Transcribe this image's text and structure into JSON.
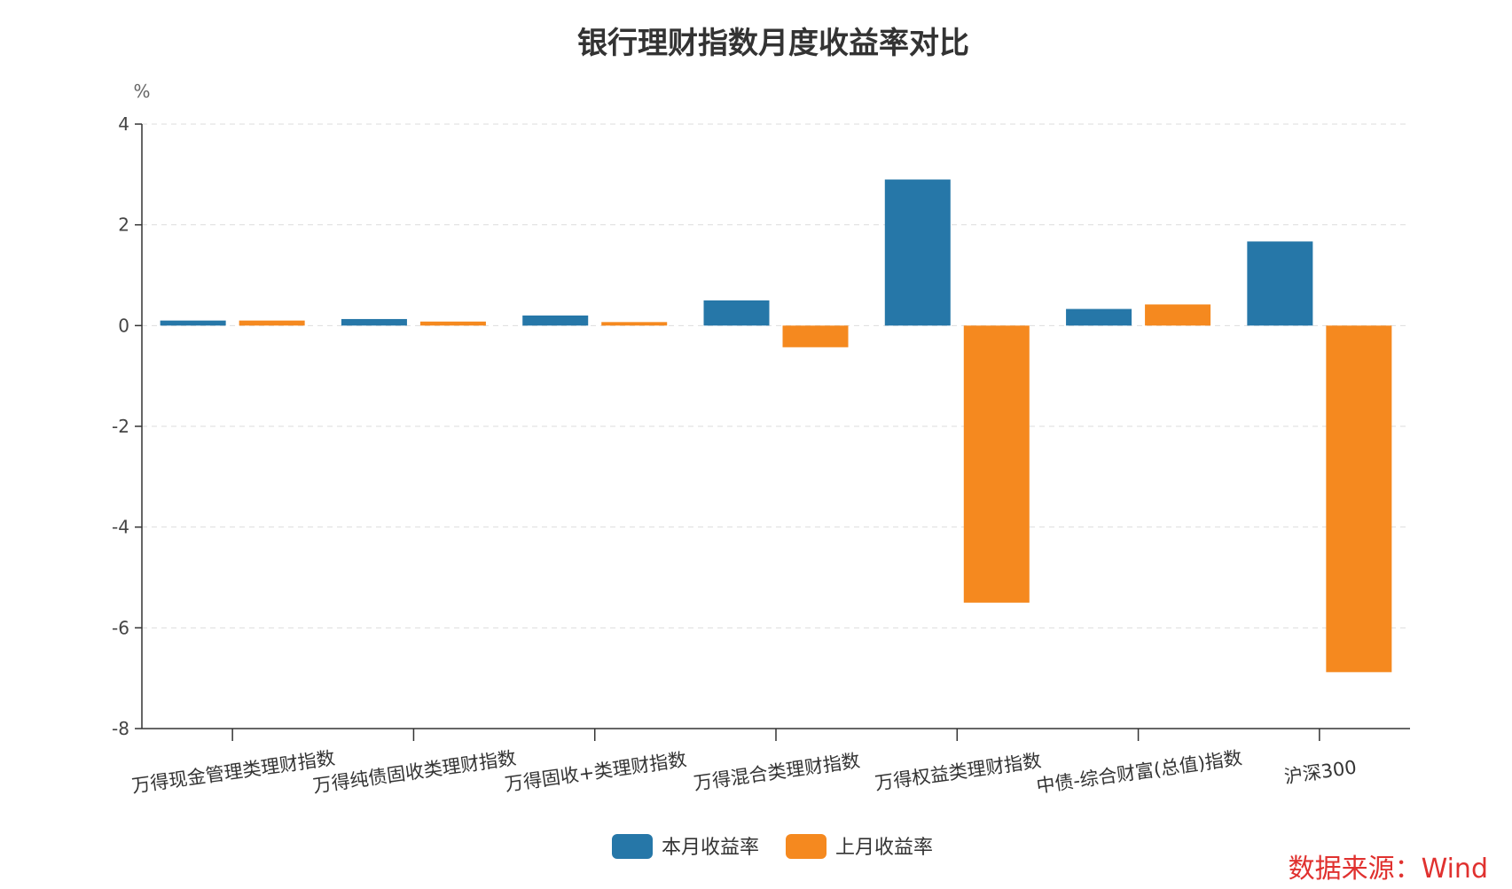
{
  "chart_data": {
    "type": "bar",
    "title": "银行理财指数月度收益率对比",
    "ylabel": "%",
    "xlabel": "",
    "ylim": [
      -8,
      4
    ],
    "yticks": [
      4,
      2,
      0,
      -2,
      -4,
      -6,
      -8
    ],
    "yticks_labels": [
      "4",
      "2",
      "0",
      "-2",
      "-4",
      "-6",
      "-8"
    ],
    "grid": true,
    "legend_position": "bottom-center",
    "categories": [
      "万得现金管理类理财指数",
      "万得纯债固收类理财指数",
      "万得固收+类理财指数",
      "万得混合类理财指数",
      "万得权益类理财指数",
      "中债-综合财富(总值)指数",
      "沪深300"
    ],
    "series": [
      {
        "name": "本月收益率",
        "color": "#2677a8",
        "values": [
          0.1,
          0.13,
          0.2,
          0.5,
          2.9,
          0.33,
          1.67
        ]
      },
      {
        "name": "上月收益率",
        "color": "#f5891f",
        "values": [
          0.1,
          0.08,
          0.07,
          -0.43,
          -5.5,
          0.42,
          -6.88
        ]
      }
    ]
  },
  "source": {
    "text": "数据来源：Wind",
    "color": "#e0312f"
  }
}
